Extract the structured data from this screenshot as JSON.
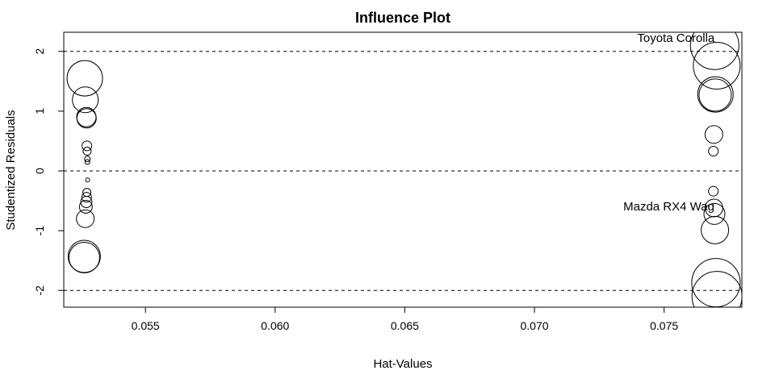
{
  "chart_data": {
    "type": "scatter",
    "title": "Influence Plot",
    "xlabel": "Hat-Values",
    "ylabel": "Studentized Residuals",
    "xlim": [
      0.05185,
      0.078
    ],
    "ylim": [
      -2.28,
      2.32
    ],
    "xticks": [
      0.055,
      0.06,
      0.065,
      0.07,
      0.075
    ],
    "xtick_labels": [
      "0.055",
      "0.060",
      "0.065",
      "0.070",
      "0.075"
    ],
    "yticks": [
      -2,
      -1,
      0,
      1,
      2
    ],
    "ytick_labels": [
      "-2",
      "-1",
      "0",
      "1",
      "2"
    ],
    "reference_lines": {
      "y": [
        -2,
        0,
        2
      ]
    },
    "grid": false,
    "legend": "none",
    "bubble_size_meaning": "circle area proportional to Cook's distance",
    "points": [
      {
        "x": 0.05266,
        "y": 1.55,
        "size": 22
      },
      {
        "x": 0.05268,
        "y": 1.19,
        "size": 16
      },
      {
        "x": 0.05272,
        "y": 0.9,
        "size": 12
      },
      {
        "x": 0.05273,
        "y": 0.88,
        "size": 12
      },
      {
        "x": 0.05274,
        "y": 0.42,
        "size": 6
      },
      {
        "x": 0.05275,
        "y": 0.33,
        "size": 5
      },
      {
        "x": 0.05276,
        "y": 0.2,
        "size": 3.5
      },
      {
        "x": 0.05276,
        "y": 0.15,
        "size": 3
      },
      {
        "x": 0.05277,
        "y": -0.15,
        "size": 2.5
      },
      {
        "x": 0.05274,
        "y": -0.36,
        "size": 5
      },
      {
        "x": 0.05273,
        "y": -0.44,
        "size": 6
      },
      {
        "x": 0.05272,
        "y": -0.52,
        "size": 7
      },
      {
        "x": 0.0527,
        "y": -0.6,
        "size": 8
      },
      {
        "x": 0.05268,
        "y": -0.8,
        "size": 11
      },
      {
        "x": 0.05264,
        "y": -1.43,
        "size": 20
      },
      {
        "x": 0.05264,
        "y": -1.45,
        "size": 19
      },
      {
        "x": 0.07695,
        "y": 2.1,
        "size": 30
      },
      {
        "x": 0.07703,
        "y": 1.76,
        "size": 29
      },
      {
        "x": 0.07698,
        "y": 1.28,
        "size": 22
      },
      {
        "x": 0.07697,
        "y": 1.27,
        "size": 20
      },
      {
        "x": 0.07692,
        "y": 0.61,
        "size": 11
      },
      {
        "x": 0.0769,
        "y": 0.33,
        "size": 6
      },
      {
        "x": 0.0769,
        "y": -0.34,
        "size": 6
      },
      {
        "x": 0.07692,
        "y": -0.62,
        "size": 11
      },
      {
        "x": 0.07694,
        "y": -0.72,
        "size": 13
      },
      {
        "x": 0.07696,
        "y": -0.99,
        "size": 17
      },
      {
        "x": 0.077,
        "y": -1.87,
        "size": 30
      },
      {
        "x": 0.07704,
        "y": -2.1,
        "size": 31
      }
    ],
    "annotations": [
      {
        "text": "Toyota Corolla",
        "x": 0.07695,
        "y": 2.1
      },
      {
        "text": "Mazda RX4 Wag",
        "x": 0.07694,
        "y": -0.72
      }
    ]
  }
}
